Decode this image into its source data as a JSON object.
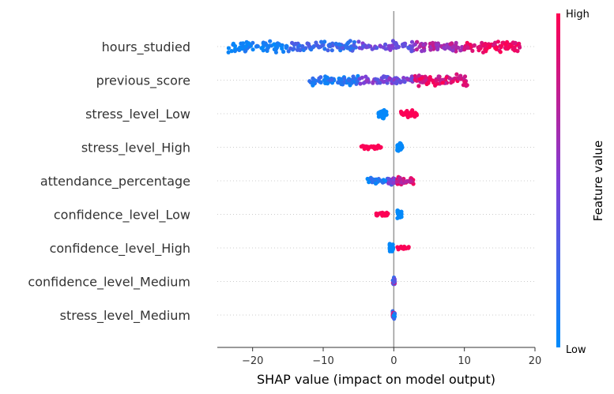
{
  "chart_data": {
    "type": "scatter",
    "subtype": "shap-beeswarm",
    "xlabel": "SHAP value (impact on model output)",
    "xlim": [
      -25,
      20
    ],
    "xticks": [
      -20,
      -10,
      0,
      10,
      20
    ],
    "xtick_labels": [
      "−20",
      "−10",
      "0",
      "10",
      "20"
    ],
    "colorbar": {
      "title": "Feature value",
      "high_label": "High",
      "low_label": "Low",
      "low_color": "#008bfb",
      "mid_color": "#7f3fd6",
      "high_color": "#ff0052"
    },
    "gridlines": "dotted horizontal per feature",
    "features": [
      {
        "name": "hours_studied",
        "segments": [
          {
            "min": -23.5,
            "max": -15,
            "lo": 0.0,
            "hi": 0.15,
            "n": 70,
            "w": 1.0
          },
          {
            "min": -15,
            "max": -5,
            "lo": 0.1,
            "hi": 0.35,
            "n": 75,
            "w": 0.9
          },
          {
            "min": -5,
            "max": 3,
            "lo": 0.3,
            "hi": 0.55,
            "n": 55,
            "w": 0.85
          },
          {
            "min": 3,
            "max": 10,
            "lo": 0.55,
            "hi": 0.8,
            "n": 70,
            "w": 0.9
          },
          {
            "min": 10,
            "max": 18,
            "lo": 0.8,
            "hi": 1.0,
            "n": 90,
            "w": 1.0
          }
        ]
      },
      {
        "name": "previous_score",
        "segments": [
          {
            "min": -12,
            "max": -5,
            "lo": 0.0,
            "hi": 0.25,
            "n": 70,
            "w": 0.95
          },
          {
            "min": -5,
            "max": 3,
            "lo": 0.3,
            "hi": 0.6,
            "n": 70,
            "w": 0.8
          },
          {
            "min": 3,
            "max": 10.5,
            "lo": 0.7,
            "hi": 1.0,
            "n": 90,
            "w": 1.0
          }
        ]
      },
      {
        "name": "stress_level_Low",
        "segments": [
          {
            "min": -2.2,
            "max": -1.0,
            "lo": 0.0,
            "hi": 0.03,
            "n": 45,
            "w": 0.75
          },
          {
            "min": 1.0,
            "max": 3.3,
            "lo": 0.97,
            "hi": 1.0,
            "n": 30,
            "w": 0.55
          }
        ]
      },
      {
        "name": "stress_level_High",
        "segments": [
          {
            "min": -4.6,
            "max": -1.8,
            "lo": 0.97,
            "hi": 1.0,
            "n": 25,
            "w": 0.35
          },
          {
            "min": 0.5,
            "max": 1.2,
            "lo": 0.0,
            "hi": 0.03,
            "n": 35,
            "w": 0.8
          }
        ]
      },
      {
        "name": "attendance_percentage",
        "segments": [
          {
            "min": -3.8,
            "max": -0.8,
            "lo": 0.0,
            "hi": 0.25,
            "n": 35,
            "w": 0.6
          },
          {
            "min": -0.8,
            "max": 0.4,
            "lo": 0.25,
            "hi": 0.6,
            "n": 30,
            "w": 0.7
          },
          {
            "min": 0.4,
            "max": 2.8,
            "lo": 0.65,
            "hi": 1.0,
            "n": 40,
            "w": 0.75
          }
        ]
      },
      {
        "name": "confidence_level_Low",
        "segments": [
          {
            "min": -2.5,
            "max": -0.8,
            "lo": 0.97,
            "hi": 1.0,
            "n": 25,
            "w": 0.4
          },
          {
            "min": 0.5,
            "max": 1.1,
            "lo": 0.0,
            "hi": 0.03,
            "n": 35,
            "w": 0.8
          }
        ]
      },
      {
        "name": "confidence_level_High",
        "segments": [
          {
            "min": -0.6,
            "max": -0.1,
            "lo": 0.0,
            "hi": 0.03,
            "n": 40,
            "w": 0.8
          },
          {
            "min": 0.5,
            "max": 2.2,
            "lo": 0.97,
            "hi": 1.0,
            "n": 20,
            "w": 0.3
          }
        ]
      },
      {
        "name": "confidence_level_Medium",
        "segments": [
          {
            "min": -0.15,
            "max": 0.15,
            "lo": 0.0,
            "hi": 1.0,
            "n": 30,
            "w": 0.6
          }
        ]
      },
      {
        "name": "stress_level_Medium",
        "segments": [
          {
            "min": -0.15,
            "max": 0.15,
            "lo": 0.0,
            "hi": 1.0,
            "n": 30,
            "w": 0.6
          }
        ]
      }
    ]
  }
}
